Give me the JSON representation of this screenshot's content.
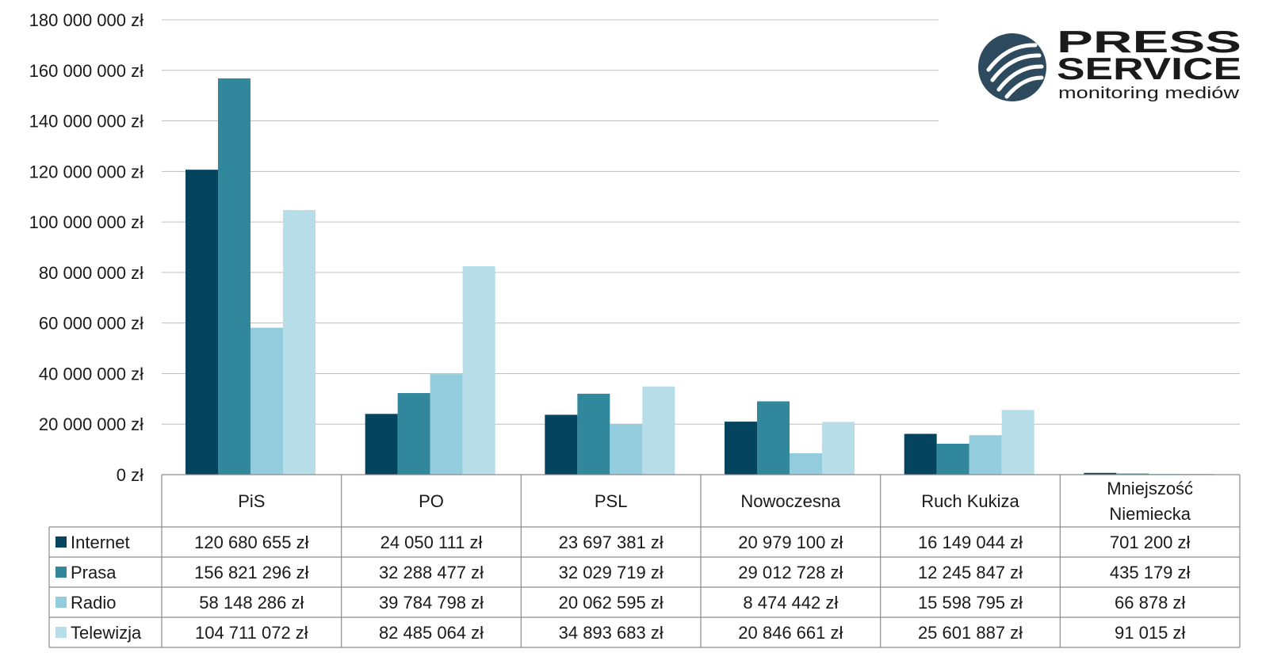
{
  "chart_data": {
    "type": "bar",
    "categories": [
      "PiS",
      "PO",
      "PSL",
      "Nowoczesna",
      "Ruch Kukiza",
      "Mniejszość Niemiecka"
    ],
    "series": [
      {
        "name": "Internet",
        "values": [
          120680655,
          24050111,
          23697381,
          20979100,
          16149044,
          701200
        ],
        "labels": [
          "120 680 655 zł",
          "24 050 111 zł",
          "23 697 381 zł",
          "20 979 100 zł",
          "16 149 044 zł",
          "701 200 zł"
        ]
      },
      {
        "name": "Prasa",
        "values": [
          156821296,
          32288477,
          32029719,
          29012728,
          12245847,
          435179
        ],
        "labels": [
          "156 821 296 zł",
          "32 288 477 zł",
          "32 029 719 zł",
          "29 012 728 zł",
          "12 245 847 zł",
          "435 179 zł"
        ]
      },
      {
        "name": "Radio",
        "values": [
          58148286,
          39784798,
          20062595,
          8474442,
          15598795,
          66878
        ],
        "labels": [
          "58 148 286 zł",
          "39 784 798 zł",
          "20 062 595 zł",
          "8 474 442 zł",
          "15 598 795 zł",
          "66 878 zł"
        ]
      },
      {
        "name": "Telewizja",
        "values": [
          104711072,
          82485064,
          34893683,
          20846661,
          25601887,
          91015
        ],
        "labels": [
          "104 711 072 zł",
          "82 485 064 zł",
          "34 893 683 zł",
          "20 846 661 zł",
          "25 601 887 zł",
          "91 015 zł"
        ]
      }
    ],
    "colors": [
      "#05445E",
      "#31879C",
      "#93CDDD",
      "#B6DDE8"
    ],
    "y_ticks": [
      {
        "value": 0,
        "label": "0 zł"
      },
      {
        "value": 20000000,
        "label": "20 000 000 zł"
      },
      {
        "value": 40000000,
        "label": "40 000 000 zł"
      },
      {
        "value": 60000000,
        "label": "60 000 000 zł"
      },
      {
        "value": 80000000,
        "label": "80 000 000 zł"
      },
      {
        "value": 100000000,
        "label": "100 000 000 zł"
      },
      {
        "value": 120000000,
        "label": "120 000 000 zł"
      },
      {
        "value": 140000000,
        "label": "140 000 000 zł"
      },
      {
        "value": 160000000,
        "label": "160 000 000 zł"
      },
      {
        "value": 180000000,
        "label": "180 000 000 zł"
      }
    ],
    "ylim": [
      0,
      180000000
    ],
    "grid": true,
    "data_table": true,
    "title": "",
    "xlabel": "",
    "ylabel": ""
  },
  "logo": {
    "line1": "PRESS",
    "line2": "SERVICE",
    "tagline": "monitoring mediów",
    "color": "#2E4A5E"
  }
}
